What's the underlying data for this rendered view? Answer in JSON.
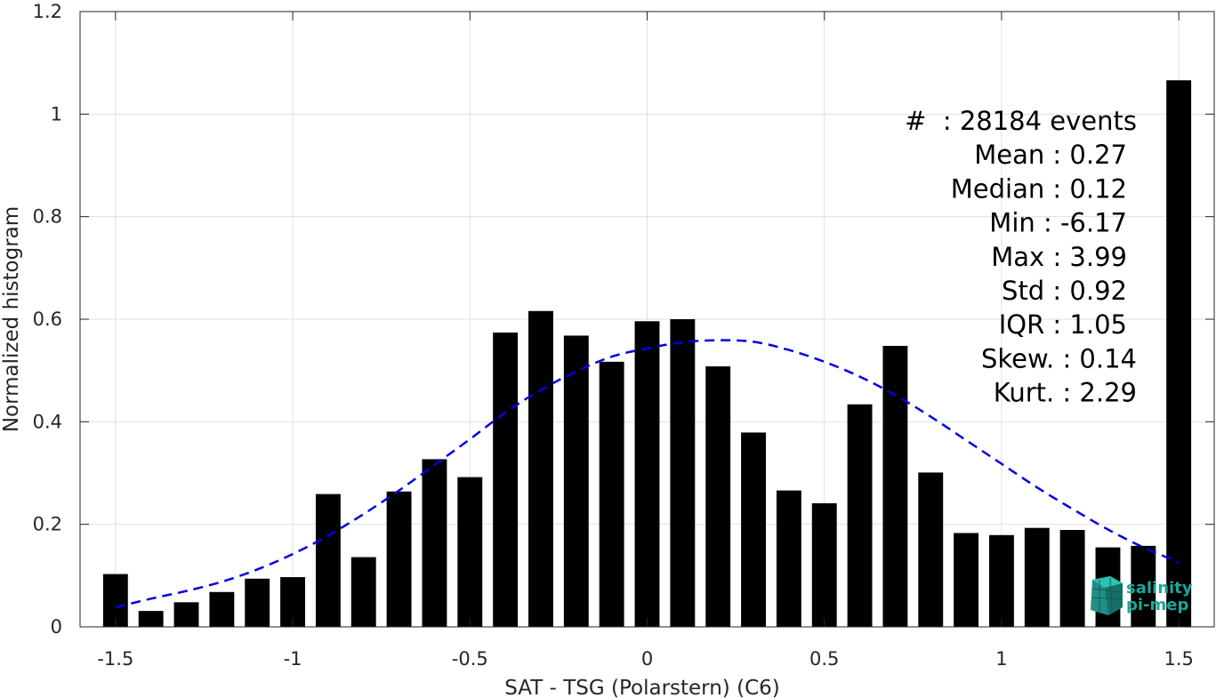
{
  "chart_data": {
    "type": "bar",
    "xlabel": "SAT - TSG (Polarstern) (C6)",
    "ylabel": "Normalized histogram",
    "xlim": [
      -1.6,
      1.6
    ],
    "ylim": [
      0,
      1.2
    ],
    "x_ticks": [
      -1.5,
      -1,
      -0.5,
      0,
      0.5,
      1,
      1.5
    ],
    "x_tick_labels": [
      "-1.5",
      "-1",
      "-0.5",
      "0",
      "0.5",
      "1",
      "1.5"
    ],
    "y_ticks": [
      0,
      0.2,
      0.4,
      0.6,
      0.8,
      1,
      1.2
    ],
    "y_tick_labels": [
      "0",
      "0.2",
      "0.4",
      "0.6",
      "0.8",
      "1",
      "1.2"
    ],
    "grid": true,
    "bar_color": "#000000",
    "bins": [
      -1.5,
      -1.4,
      -1.3,
      -1.2,
      -1.1,
      -1.0,
      -0.9,
      -0.8,
      -0.7,
      -0.6,
      -0.5,
      -0.4,
      -0.3,
      -0.2,
      -0.1,
      0.0,
      0.1,
      0.2,
      0.3,
      0.4,
      0.5,
      0.6,
      0.7,
      0.8,
      0.9,
      1.0,
      1.1,
      1.2,
      1.3,
      1.4,
      1.5
    ],
    "values": [
      0.103,
      0.031,
      0.048,
      0.068,
      0.094,
      0.097,
      0.259,
      0.136,
      0.264,
      0.327,
      0.292,
      0.574,
      0.616,
      0.568,
      0.517,
      0.596,
      0.6,
      0.508,
      0.379,
      0.266,
      0.241,
      0.434,
      0.548,
      0.301,
      0.183,
      0.179,
      0.193,
      0.189,
      0.155,
      0.158,
      1.066
    ],
    "fit_curve": {
      "style": "dashed",
      "color": "#0000e6",
      "x": [
        -1.5,
        -1.4,
        -1.3,
        -1.2,
        -1.1,
        -1.0,
        -0.9,
        -0.8,
        -0.7,
        -0.6,
        -0.5,
        -0.4,
        -0.3,
        -0.2,
        -0.1,
        0.0,
        0.1,
        0.2,
        0.3,
        0.4,
        0.5,
        0.6,
        0.7,
        0.8,
        0.9,
        1.0,
        1.1,
        1.2,
        1.3,
        1.4,
        1.5
      ],
      "y": [
        0.038,
        0.055,
        0.07,
        0.088,
        0.112,
        0.142,
        0.178,
        0.22,
        0.266,
        0.316,
        0.366,
        0.418,
        0.462,
        0.498,
        0.527,
        0.543,
        0.555,
        0.559,
        0.556,
        0.54,
        0.517,
        0.488,
        0.452,
        0.41,
        0.364,
        0.318,
        0.272,
        0.23,
        0.19,
        0.155,
        0.126
      ]
    },
    "stats_text": [
      "#  : 28184 events",
      "Mean : 0.27",
      "Median : 0.12",
      "Min : -6.17",
      "Max : 3.99",
      "Std : 0.92",
      "IQR : 1.05",
      "Skew. : 0.14",
      "Kurt. : 2.29"
    ],
    "logo": {
      "lines": [
        "salinity",
        "pi-mep"
      ],
      "color": "#1aa79a"
    }
  }
}
